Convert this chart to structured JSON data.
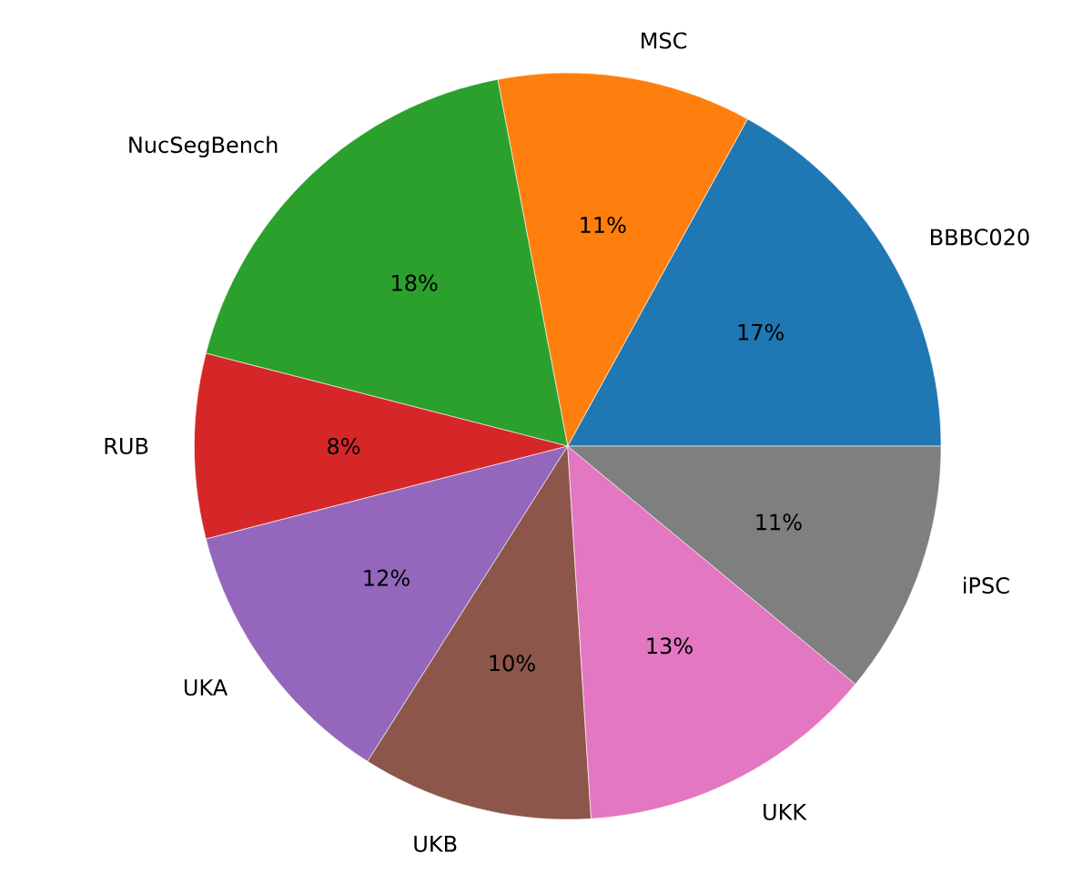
{
  "chart_data": {
    "type": "pie",
    "categories": [
      "BBBC020",
      "MSC",
      "NucSegBench",
      "RUB",
      "UKA",
      "UKB",
      "UKK",
      "iPSC"
    ],
    "values": [
      17,
      11,
      18,
      8,
      12,
      10,
      13,
      11
    ],
    "colors": [
      "#1f77b4",
      "#ff7f0e",
      "#2ca02c",
      "#d62728",
      "#9467bd",
      "#8c564b",
      "#e377c2",
      "#7f7f7f"
    ],
    "value_labels": [
      "17%",
      "11%",
      "18%",
      "8%",
      "12%",
      "10%",
      "13%",
      "11%"
    ]
  }
}
